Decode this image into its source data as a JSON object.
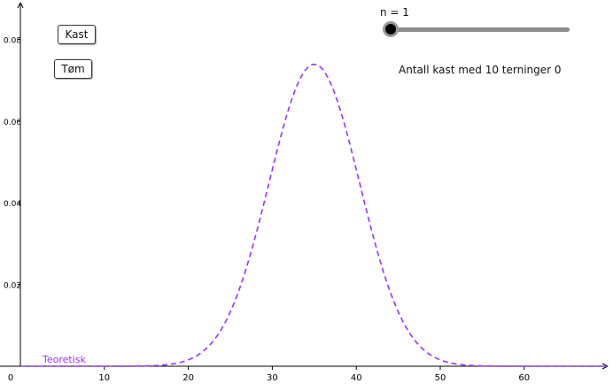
{
  "controls": {
    "throw_button": "Kast",
    "clear_button": "Tøm"
  },
  "slider": {
    "caption": "n = 1",
    "value": 1,
    "value_fraction": 0.0
  },
  "status": {
    "count_text": "Antall kast med 10 terninger 0"
  },
  "chart_data": {
    "type": "line",
    "title": "",
    "xlabel": "",
    "ylabel": "",
    "x_ticks": [
      "0",
      "10",
      "20",
      "30",
      "40",
      "50",
      "60"
    ],
    "y_ticks": [
      "0.02",
      "0.04",
      "0.06",
      "0.08"
    ],
    "xlim": [
      0,
      72
    ],
    "ylim": [
      0,
      0.086
    ],
    "grid": false,
    "series": [
      {
        "name": "Teoretisk",
        "style": "dashed",
        "color": "#9933ff",
        "distribution": {
          "kind": "normal",
          "mean": 35,
          "sd": 5.4
        }
      }
    ]
  },
  "colors": {
    "curve": "#9933ff",
    "axis": "#000000",
    "slider_track": "#8c8c8c"
  }
}
